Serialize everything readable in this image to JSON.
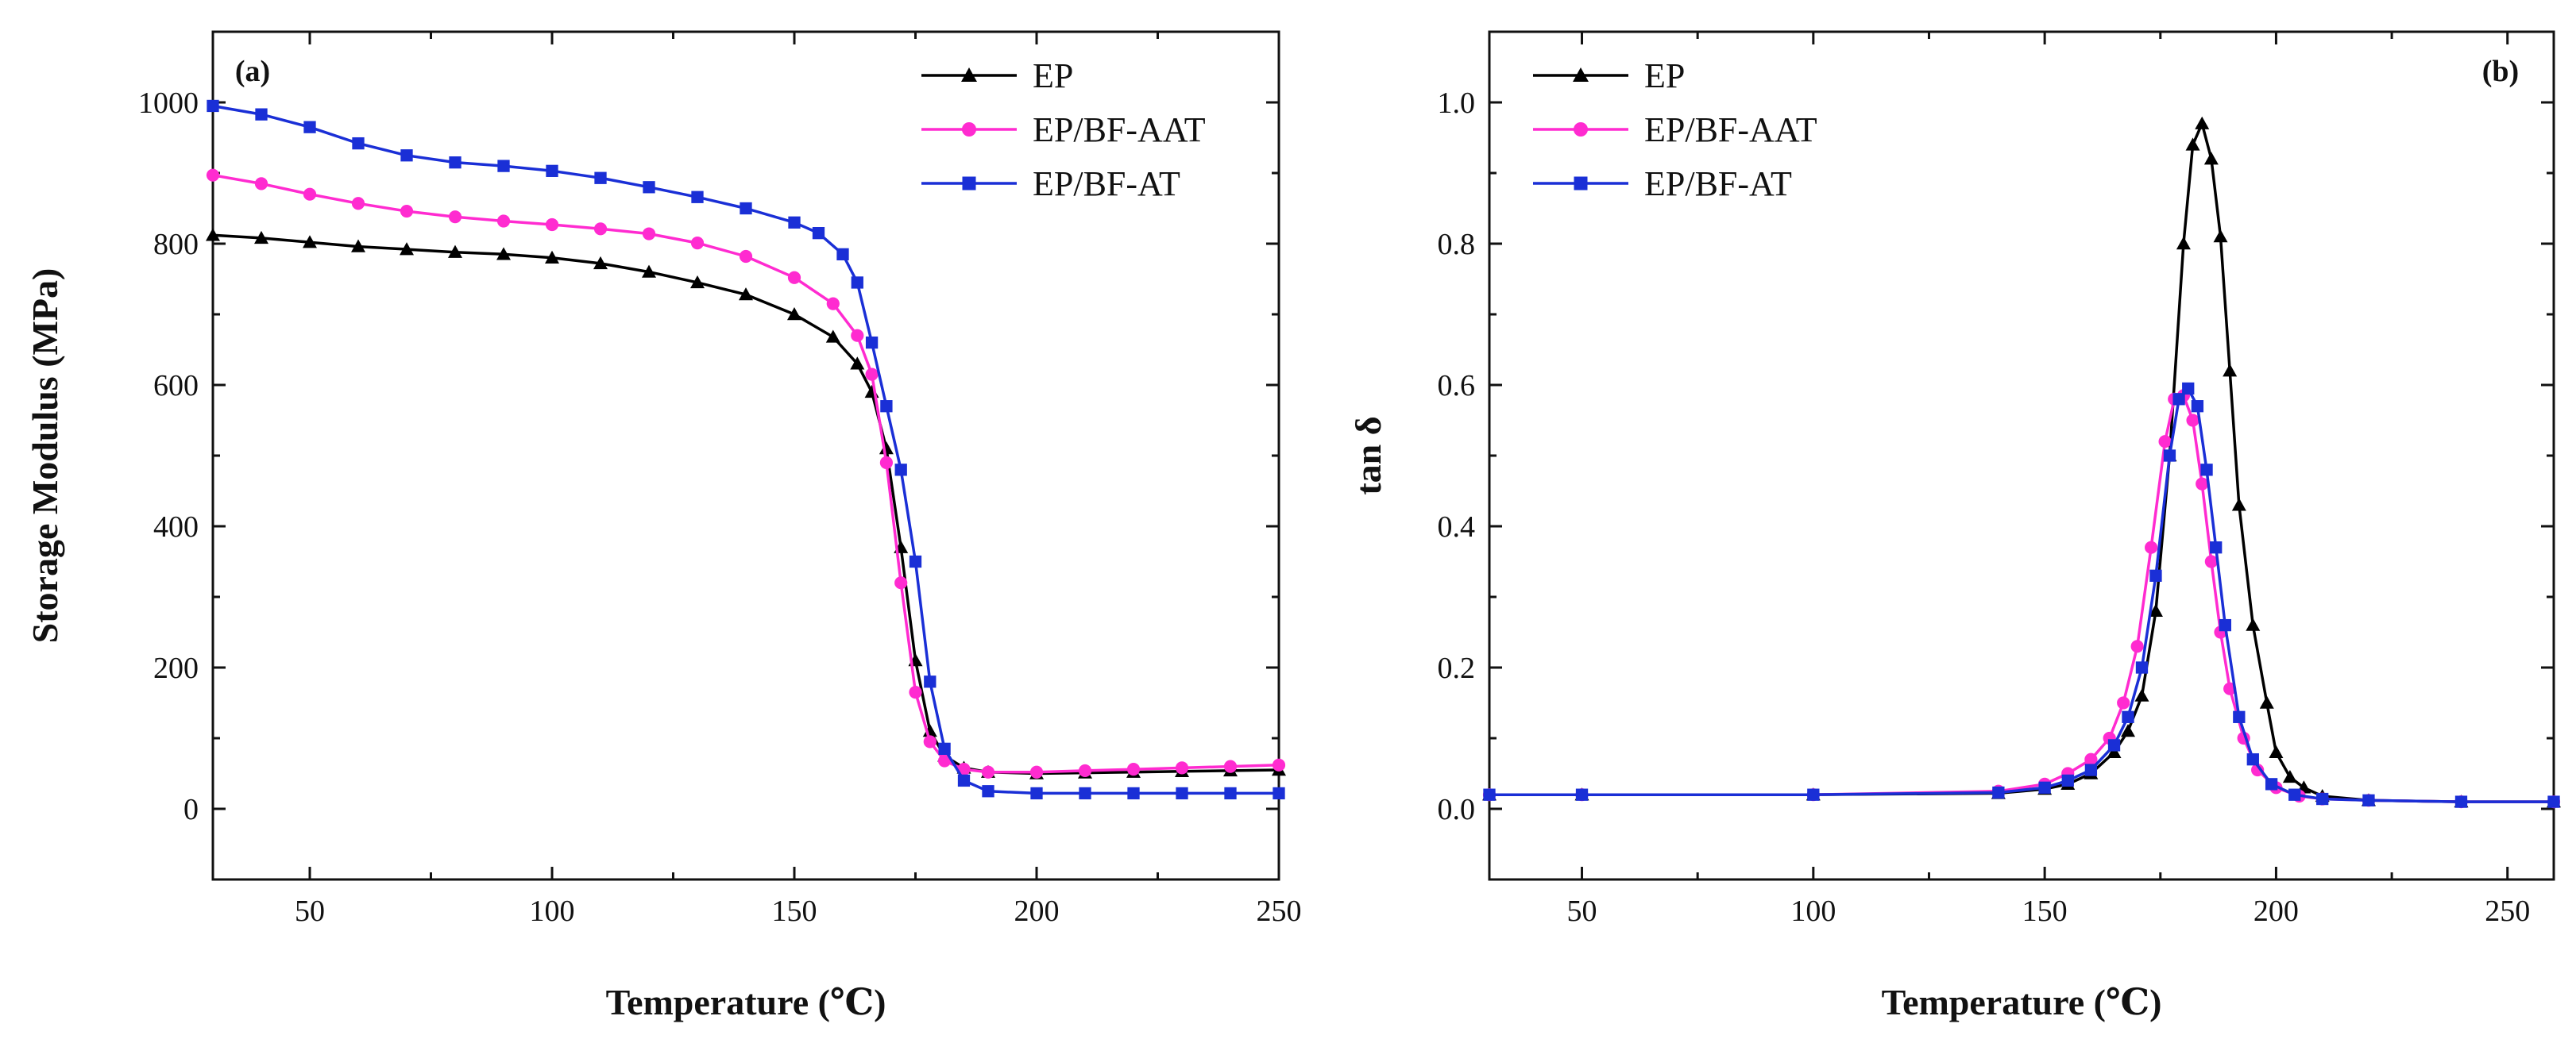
{
  "chart_data": [
    {
      "type": "line",
      "panel_label": "(a)",
      "title": "",
      "xlabel": "Temperature (℃)",
      "ylabel": "Storage Modulus (MPa)",
      "xlim": [
        30,
        250
      ],
      "ylim": [
        -100,
        1100
      ],
      "xticks": [
        50,
        100,
        150,
        200,
        250
      ],
      "yticks": [
        0,
        200,
        400,
        600,
        800,
        1000
      ],
      "grid": false,
      "legend_position": "top-right",
      "series": [
        {
          "name": "EP",
          "color": "#000000",
          "marker": "triangle",
          "x": [
            30,
            40,
            50,
            60,
            70,
            80,
            90,
            100,
            110,
            120,
            130,
            140,
            150,
            158,
            163,
            166,
            169,
            172,
            175,
            178,
            181,
            185,
            190,
            200,
            210,
            220,
            230,
            240,
            250
          ],
          "y": [
            812,
            808,
            802,
            796,
            792,
            788,
            785,
            780,
            772,
            760,
            745,
            728,
            700,
            668,
            630,
            590,
            510,
            370,
            210,
            110,
            75,
            58,
            52,
            50,
            51,
            52,
            53,
            54,
            55
          ]
        },
        {
          "name": "EP/BF-AAT",
          "color": "#ff2bd0",
          "marker": "circle",
          "x": [
            30,
            40,
            50,
            60,
            70,
            80,
            90,
            100,
            110,
            120,
            130,
            140,
            150,
            158,
            163,
            166,
            169,
            172,
            175,
            178,
            181,
            185,
            190,
            200,
            210,
            220,
            230,
            240,
            250
          ],
          "y": [
            897,
            885,
            870,
            857,
            846,
            838,
            832,
            827,
            821,
            814,
            801,
            782,
            752,
            715,
            670,
            615,
            490,
            320,
            165,
            95,
            68,
            56,
            52,
            52,
            54,
            56,
            58,
            60,
            62
          ]
        },
        {
          "name": "EP/BF-AT",
          "color": "#1a2fd6",
          "marker": "square",
          "x": [
            30,
            40,
            50,
            60,
            70,
            80,
            90,
            100,
            110,
            120,
            130,
            140,
            150,
            155,
            160,
            163,
            166,
            169,
            172,
            175,
            178,
            181,
            185,
            190,
            200,
            210,
            220,
            230,
            240,
            250
          ],
          "y": [
            995,
            983,
            965,
            942,
            925,
            915,
            910,
            903,
            893,
            880,
            866,
            850,
            830,
            815,
            785,
            745,
            660,
            570,
            480,
            350,
            180,
            85,
            40,
            25,
            22,
            22,
            22,
            22,
            22,
            22
          ]
        }
      ]
    },
    {
      "type": "line",
      "panel_label": "(b)",
      "title": "",
      "xlabel": "Temperature  (℃)",
      "ylabel": "tan δ",
      "xlim": [
        30,
        260
      ],
      "ylim": [
        -0.1,
        1.1
      ],
      "xticks": [
        50,
        100,
        150,
        200,
        250
      ],
      "yticks": [
        0.0,
        0.2,
        0.4,
        0.6,
        0.8,
        1.0
      ],
      "xticklabels": [
        "50",
        "100",
        "150",
        "200",
        "250"
      ],
      "yticklabels": [
        "0.0",
        "0.2",
        "0.4",
        "0.6",
        "0.8",
        "1.0"
      ],
      "grid": false,
      "legend_position": "top-left",
      "series": [
        {
          "name": "EP",
          "color": "#000000",
          "marker": "triangle",
          "x": [
            30,
            50,
            100,
            140,
            150,
            155,
            160,
            165,
            168,
            171,
            174,
            177,
            180,
            182,
            184,
            186,
            188,
            190,
            192,
            195,
            198,
            200,
            203,
            206,
            210,
            220,
            240,
            260
          ],
          "y": [
            0.02,
            0.02,
            0.02,
            0.022,
            0.028,
            0.035,
            0.05,
            0.08,
            0.11,
            0.16,
            0.28,
            0.5,
            0.8,
            0.94,
            0.97,
            0.92,
            0.81,
            0.62,
            0.43,
            0.26,
            0.15,
            0.08,
            0.045,
            0.03,
            0.018,
            0.012,
            0.01,
            0.01
          ]
        },
        {
          "name": "EP/BF-AAT",
          "color": "#ff2bd0",
          "marker": "circle",
          "x": [
            30,
            50,
            100,
            140,
            150,
            155,
            160,
            164,
            167,
            170,
            173,
            176,
            178,
            180,
            182,
            184,
            186,
            188,
            190,
            193,
            196,
            200,
            205,
            210,
            220,
            240,
            260
          ],
          "y": [
            0.02,
            0.02,
            0.02,
            0.025,
            0.035,
            0.05,
            0.07,
            0.1,
            0.15,
            0.23,
            0.37,
            0.52,
            0.58,
            0.585,
            0.55,
            0.46,
            0.35,
            0.25,
            0.17,
            0.1,
            0.055,
            0.03,
            0.018,
            0.014,
            0.012,
            0.01,
            0.01
          ]
        },
        {
          "name": "EP/BF-AT",
          "color": "#1a2fd6",
          "marker": "square",
          "x": [
            30,
            50,
            100,
            140,
            150,
            155,
            160,
            165,
            168,
            171,
            174,
            177,
            179,
            181,
            183,
            185,
            187,
            189,
            192,
            195,
            199,
            204,
            210,
            220,
            240,
            260
          ],
          "y": [
            0.02,
            0.02,
            0.02,
            0.023,
            0.03,
            0.04,
            0.055,
            0.09,
            0.13,
            0.2,
            0.33,
            0.5,
            0.58,
            0.595,
            0.57,
            0.48,
            0.37,
            0.26,
            0.13,
            0.07,
            0.035,
            0.02,
            0.014,
            0.012,
            0.01,
            0.01
          ]
        }
      ]
    }
  ]
}
